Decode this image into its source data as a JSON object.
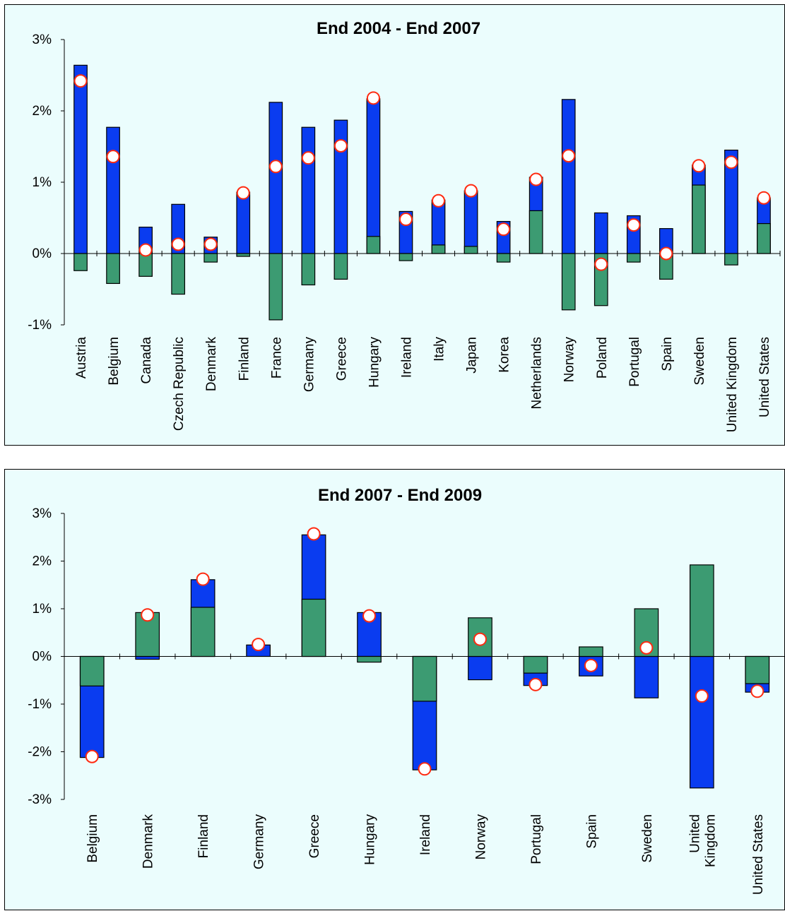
{
  "chart_data": [
    {
      "type": "bar",
      "title": "End 2004 - End 2007",
      "ylim": [
        -0.01,
        0.03
      ],
      "yticks": [
        {
          "value": 0.03,
          "label": "3%"
        },
        {
          "value": 0.02,
          "label": "2%"
        },
        {
          "value": 0.01,
          "label": "1%"
        },
        {
          "value": 0.0,
          "label": "0%"
        },
        {
          "value": -0.01,
          "label": "-1%"
        }
      ],
      "categories": [
        [
          "Austria"
        ],
        [
          "Belgium"
        ],
        [
          "Canada"
        ],
        [
          "Czech Republic"
        ],
        [
          "Denmark"
        ],
        [
          "Finland"
        ],
        [
          "France"
        ],
        [
          "Germany"
        ],
        [
          "Greece"
        ],
        [
          "Hungary"
        ],
        [
          "Ireland"
        ],
        [
          "Italy"
        ],
        [
          "Japan"
        ],
        [
          "Korea"
        ],
        [
          "Netherlands"
        ],
        [
          "Norway"
        ],
        [
          "Poland"
        ],
        [
          "Portugal"
        ],
        [
          "Spain"
        ],
        [
          "Sweden"
        ],
        [
          "United Kingdom"
        ],
        [
          "United States"
        ]
      ],
      "series": [
        {
          "color": "#3c9b72",
          "values": [
            -0.0024,
            -0.0042,
            -0.0032,
            -0.0057,
            -0.0012,
            -0.0004,
            -0.0093,
            -0.0044,
            -0.0036,
            0.0024,
            -0.001,
            0.0012,
            0.001,
            -0.0012,
            0.006,
            -0.0079,
            -0.0073,
            -0.0012,
            -0.0036,
            0.0096,
            -0.0016,
            0.0042
          ]
        },
        {
          "color": "#0a3cf0",
          "values": [
            0.0264,
            0.0177,
            0.0037,
            0.0069,
            0.0023,
            0.0086,
            0.0212,
            0.0177,
            0.0187,
            0.0217,
            0.0059,
            0.0075,
            0.0088,
            0.0045,
            0.0107,
            0.0216,
            0.0057,
            0.0053,
            0.0035,
            0.0124,
            0.0145,
            0.0078
          ]
        },
        {
          "color": "#ffffff",
          "marker": "circle",
          "values": [
            0.0242,
            0.0136,
            0.0005,
            0.0013,
            0.0013,
            0.0085,
            0.0122,
            0.0134,
            0.0151,
            0.0218,
            0.0048,
            0.0074,
            0.0088,
            0.0034,
            0.0104,
            0.0137,
            -0.0015,
            0.004,
            0.0,
            0.0123,
            0.0128,
            0.0078
          ]
        }
      ]
    },
    {
      "type": "bar",
      "title": "End 2007 - End 2009",
      "ylim": [
        -0.03,
        0.03
      ],
      "yticks": [
        {
          "value": 0.03,
          "label": "3%"
        },
        {
          "value": 0.02,
          "label": "2%"
        },
        {
          "value": 0.01,
          "label": "1%"
        },
        {
          "value": 0.0,
          "label": "0%"
        },
        {
          "value": -0.01,
          "label": "-1%"
        },
        {
          "value": -0.02,
          "label": "-2%"
        },
        {
          "value": -0.03,
          "label": "-3%"
        }
      ],
      "categories": [
        [
          "Belgium"
        ],
        [
          "Denmark"
        ],
        [
          "Finland"
        ],
        [
          "Germany"
        ],
        [
          "Greece"
        ],
        [
          "Hungary"
        ],
        [
          "Ireland"
        ],
        [
          "Norway"
        ],
        [
          "Portugal"
        ],
        [
          "Spain"
        ],
        [
          "Sweden"
        ],
        [
          "United",
          "Kingdom"
        ],
        [
          "United States"
        ]
      ],
      "series": [
        {
          "color": "#3c9b72",
          "values": [
            -0.0062,
            0.0092,
            0.0103,
            0.0,
            0.012,
            -0.0012,
            -0.0094,
            0.0081,
            -0.0035,
            0.002,
            0.01,
            0.0192,
            -0.0057
          ]
        },
        {
          "color": "#0a3cf0",
          "values": [
            -0.0212,
            -0.0006,
            0.0161,
            0.0024,
            0.0255,
            0.0092,
            -0.0238,
            -0.0049,
            -0.0061,
            -0.0041,
            -0.0087,
            -0.0276,
            -0.0075
          ]
        },
        {
          "color": "#ffffff",
          "marker": "circle",
          "values": [
            -0.021,
            0.0087,
            0.0162,
            0.0025,
            0.0257,
            0.0085,
            -0.0236,
            0.0036,
            -0.0059,
            -0.0019,
            0.0018,
            -0.0083,
            -0.0073
          ]
        }
      ]
    }
  ]
}
